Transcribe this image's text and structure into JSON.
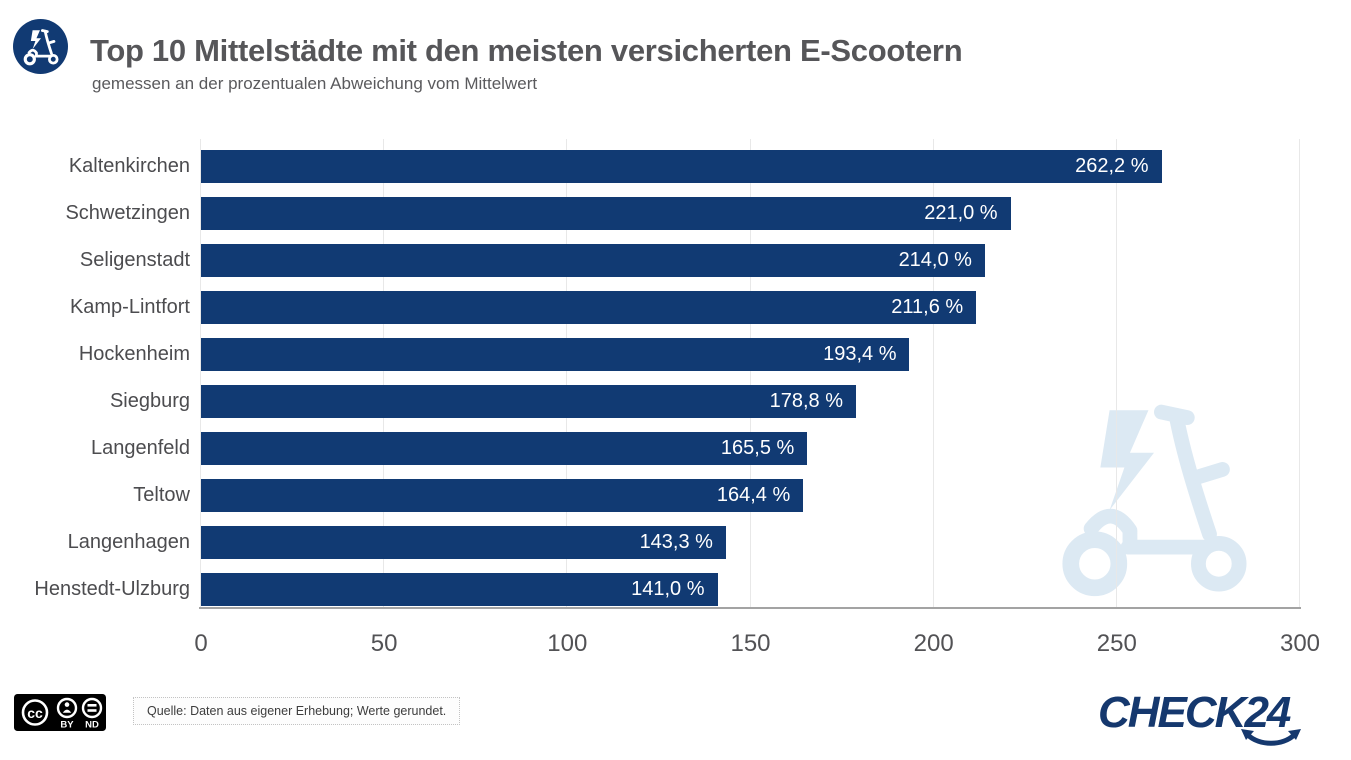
{
  "header": {
    "title": "Top 10 Mittelstädte mit den meisten versicherten E-Scootern",
    "subtitle": "gemessen an der prozentualen Abweichung vom Mittelwert",
    "icon": "e-scooter-lightning-icon"
  },
  "chart_data": {
    "type": "bar",
    "orientation": "horizontal",
    "categories": [
      "Kaltenkirchen",
      "Schwetzingen",
      "Seligenstadt",
      "Kamp-Lintfort",
      "Hockenheim",
      "Siegburg",
      "Langenfeld",
      "Teltow",
      "Langenhagen",
      "Henstedt-Ulzburg"
    ],
    "values": [
      262.2,
      221.0,
      214.0,
      211.6,
      193.4,
      178.8,
      165.5,
      164.4,
      143.3,
      141.0
    ],
    "value_labels": [
      "262,2 %",
      "221,0 %",
      "214,0 %",
      "211,6 %",
      "193,4 %",
      "178,8 %",
      "165,5 %",
      "164,4 %",
      "143,3 %",
      "141,0 %"
    ],
    "xlabel": "",
    "ylabel": "",
    "xlim": [
      0,
      300
    ],
    "x_ticks": [
      0,
      50,
      100,
      150,
      200,
      250,
      300
    ],
    "grid": true,
    "legend": false,
    "bar_color": "#113a73",
    "value_label_color": "#ffffff",
    "watermark": "e-scooter-lightning-watermark"
  },
  "footer": {
    "license": {
      "name": "CC BY-ND",
      "cc_label": "cc",
      "by_label": "BY",
      "nd_label": "ND"
    },
    "source_note": "Quelle: Daten aus eigener Erhebung; Werte gerundet.",
    "brand_logo": "CHECK24"
  },
  "colors": {
    "bar": "#113a73",
    "navy_brand": "#15386e",
    "title_text": "#565659",
    "axis_text": "#525255",
    "gridline": "#e8e8e8",
    "axis_line": "#a3a3a3",
    "watermark": "#dce9f3"
  }
}
